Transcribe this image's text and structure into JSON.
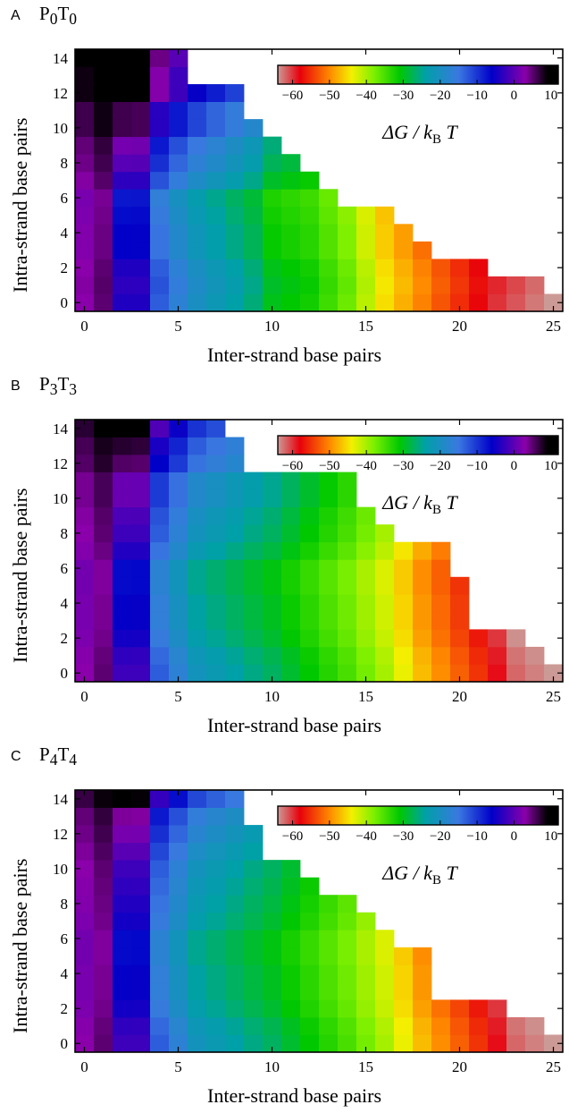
{
  "colorbar": {
    "ticks": [
      "−60",
      "−50",
      "−40",
      "−30",
      "−20",
      "−10",
      "0",
      "10"
    ],
    "tick_values": [
      -60,
      -50,
      -40,
      -30,
      -20,
      -10,
      0,
      10
    ],
    "range": [
      -64,
      12
    ],
    "label": "ΔG / k_B T",
    "stops": [
      {
        "v": -64,
        "c": "#cc9a96"
      },
      {
        "v": -58,
        "c": "#e8000c"
      },
      {
        "v": -50,
        "c": "#ff8800"
      },
      {
        "v": -44,
        "c": "#f4f000"
      },
      {
        "v": -38,
        "c": "#7ef000"
      },
      {
        "v": -31,
        "c": "#00c800"
      },
      {
        "v": -24,
        "c": "#00a0a8"
      },
      {
        "v": -15,
        "c": "#3a78e0"
      },
      {
        "v": -6,
        "c": "#0000c8"
      },
      {
        "v": 3,
        "c": "#8a00aa"
      },
      {
        "v": 9,
        "c": "#000000"
      }
    ]
  },
  "chart_data": [
    {
      "panel": "A",
      "title_main": "P",
      "title_sub1": "0",
      "title_mid": "T",
      "title_sub2": "0",
      "type": "heatmap",
      "xlabel": "Inter-strand base pairs",
      "ylabel": "Intra-strand base pairs",
      "xlim": [
        -0.5,
        25.5
      ],
      "ylim": [
        -0.5,
        14.5
      ],
      "xticks": [
        0,
        5,
        10,
        15,
        20,
        25
      ],
      "yticks": [
        0,
        2,
        4,
        6,
        8,
        10,
        12,
        14
      ],
      "row_lengths": [
        26,
        25,
        22,
        19,
        18,
        17,
        14,
        13,
        12,
        11,
        10,
        9,
        9,
        6,
        6
      ],
      "anchors": [
        [
          -4,
          3
        ],
        [
          -8,
          1
        ],
        [
          -10,
          3
        ],
        [
          -13,
          4
        ],
        [
          -17,
          5
        ],
        [
          -20,
          5
        ],
        [
          -20,
          6
        ],
        [
          -22,
          7
        ],
        [
          -24,
          8
        ],
        [
          -26,
          9
        ],
        [
          -30,
          10
        ],
        [
          -32,
          12
        ],
        [
          -37,
          14
        ],
        [
          -45,
          16
        ],
        [
          -53,
          19
        ],
        [
          -60,
          22
        ],
        [
          -64,
          25
        ]
      ],
      "row_bias": [
        0,
        1,
        0,
        -2,
        -2,
        -3,
        -4,
        1,
        4,
        6,
        11,
        11,
        18,
        18,
        20
      ]
    },
    {
      "panel": "B",
      "title_main": "P",
      "title_sub1": "3",
      "title_mid": "T",
      "title_sub2": "3",
      "type": "heatmap",
      "xlabel": "Inter-strand base pairs",
      "ylabel": "Intra-strand base pairs",
      "xlim": [
        -0.5,
        25.5
      ],
      "ylim": [
        -0.5,
        14.5
      ],
      "xticks": [
        0,
        5,
        10,
        15,
        20,
        25
      ],
      "yticks": [
        0,
        2,
        4,
        6,
        8,
        10,
        12,
        14
      ],
      "row_lengths": [
        26,
        25,
        24,
        21,
        21,
        21,
        20,
        20,
        17,
        16,
        15,
        15,
        9,
        9,
        8
      ],
      "anchors": [
        [
          -2,
          3
        ],
        [
          -6,
          1
        ],
        [
          -9,
          3
        ],
        [
          -13,
          4
        ],
        [
          -17,
          5
        ],
        [
          -21,
          6
        ],
        [
          -24,
          8
        ],
        [
          -27,
          10
        ],
        [
          -31,
          12
        ],
        [
          -35,
          14
        ],
        [
          -40,
          16
        ],
        [
          -47,
          18
        ],
        [
          -55,
          21
        ],
        [
          -62,
          23
        ],
        [
          -64,
          25
        ]
      ],
      "row_bias": [
        0,
        -1,
        -3,
        -4,
        -4,
        -5,
        -5,
        -2,
        0,
        1,
        3,
        3,
        8,
        10,
        14
      ]
    },
    {
      "panel": "C",
      "title_main": "P",
      "title_sub1": "4",
      "title_mid": "T",
      "title_sub2": "4",
      "type": "heatmap",
      "xlabel": "Inter-strand base pairs",
      "ylabel": "Intra-strand base pairs",
      "xlim": [
        -0.5,
        25.5
      ],
      "ylim": [
        -0.5,
        14.5
      ],
      "xticks": [
        0,
        5,
        10,
        15,
        20,
        25
      ],
      "yticks": [
        0,
        2,
        4,
        6,
        8,
        10,
        12,
        14
      ],
      "row_lengths": [
        26,
        25,
        23,
        19,
        19,
        19,
        17,
        16,
        15,
        13,
        12,
        10,
        10,
        9,
        9
      ],
      "anchors": [
        [
          -2,
          3
        ],
        [
          -6,
          1
        ],
        [
          -9,
          3
        ],
        [
          -13,
          4
        ],
        [
          -17,
          5
        ],
        [
          -21,
          6
        ],
        [
          -24,
          8
        ],
        [
          -27,
          10
        ],
        [
          -31,
          12
        ],
        [
          -35,
          14
        ],
        [
          -40,
          16
        ],
        [
          -47,
          18
        ],
        [
          -55,
          21
        ],
        [
          -62,
          23
        ],
        [
          -64,
          25
        ]
      ],
      "row_bias": [
        0,
        -1,
        -3,
        -4,
        -4,
        -5,
        -5,
        -3,
        -2,
        -1,
        0,
        2,
        4,
        6,
        12
      ]
    }
  ]
}
